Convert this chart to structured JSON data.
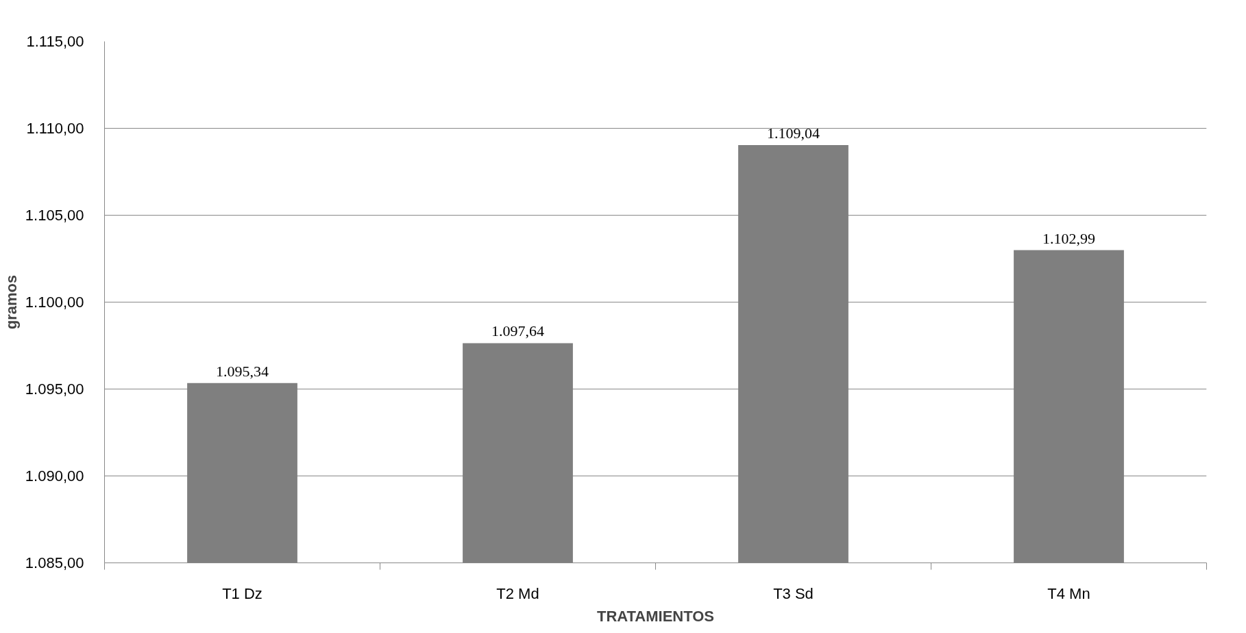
{
  "chart_data": {
    "type": "bar",
    "xlabel": "TRATAMIENTOS",
    "ylabel": "gramos",
    "categories": [
      "T1 Dz",
      "T2 Md",
      "T3 Sd",
      "T4 Mn"
    ],
    "values": [
      1095.34,
      1097.64,
      1109.04,
      1102.99
    ],
    "value_labels": [
      "1.095,34",
      "1.097,64",
      "1.109,04",
      "1.102,99"
    ],
    "color": "#7f7f7f",
    "ylim": [
      1085,
      1115
    ],
    "yticks": [
      {
        "value": 1085,
        "label": "1.085,00"
      },
      {
        "value": 1090,
        "label": "1.090,00"
      },
      {
        "value": 1095,
        "label": "1.095,00"
      },
      {
        "value": 1100,
        "label": "1.100,00"
      },
      {
        "value": 1105,
        "label": "1.105,00"
      },
      {
        "value": 1110,
        "label": "1.110,00"
      },
      {
        "value": 1115,
        "label": "1.115,00"
      }
    ],
    "grid": "y"
  }
}
